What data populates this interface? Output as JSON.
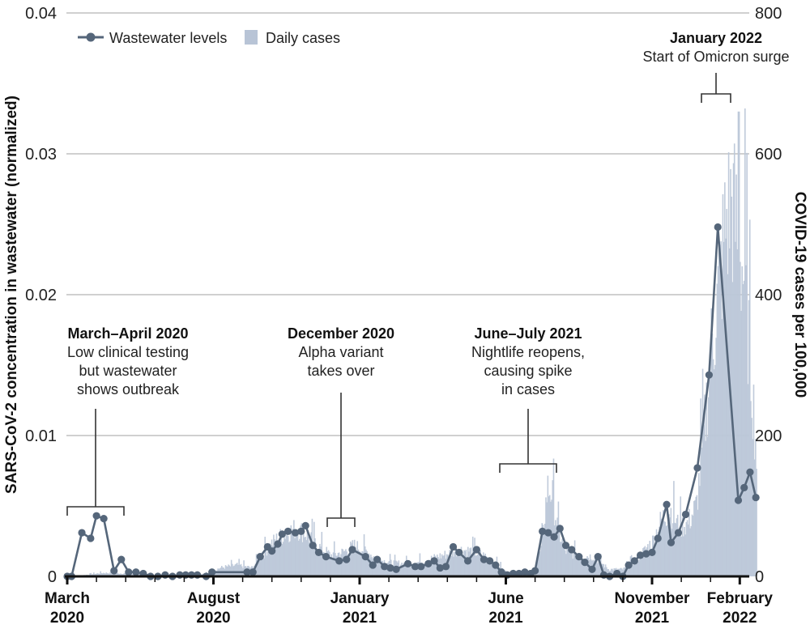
{
  "chart_data": {
    "type": "line+bar",
    "title": "",
    "legend": {
      "placement": "top-left",
      "items": [
        {
          "name": "Wastewater levels",
          "type": "line-marker",
          "color": "#55667a"
        },
        {
          "name": "Daily cases",
          "type": "bar",
          "color": "#b8c4d6"
        }
      ]
    },
    "x_axis": {
      "unit": "months since March 2020",
      "range": [
        0,
        23.3
      ],
      "major_ticks": [
        {
          "month": 0,
          "label_line1": "March",
          "label_line2": "2020"
        },
        {
          "month": 5,
          "label_line1": "August",
          "label_line2": "2020"
        },
        {
          "month": 10,
          "label_line1": "January",
          "label_line2": "2021"
        },
        {
          "month": 15,
          "label_line1": "June",
          "label_line2": "2021"
        },
        {
          "month": 20,
          "label_line1": "November",
          "label_line2": "2021"
        },
        {
          "month": 23,
          "label_line1": "February",
          "label_line2": "2022"
        }
      ],
      "minor_tick_every_months": 1
    },
    "y_left": {
      "label": "SARS-CoV-2 concentration in wastewater (normalized)",
      "range": [
        0,
        0.04
      ],
      "ticks": [
        {
          "value": 0,
          "label": "0"
        },
        {
          "value": 0.01,
          "label": "0.01"
        },
        {
          "value": 0.02,
          "label": "0.02"
        },
        {
          "value": 0.03,
          "label": "0.03"
        },
        {
          "value": 0.04,
          "label": "0.04"
        }
      ],
      "grid": true
    },
    "y_right": {
      "label": "COVID-19 cases per 100,000",
      "range": [
        0,
        800
      ],
      "ticks": [
        {
          "value": 0,
          "label": "0"
        },
        {
          "value": 200,
          "label": "200"
        },
        {
          "value": 400,
          "label": "400"
        },
        {
          "value": 600,
          "label": "600"
        },
        {
          "value": 800,
          "label": "800"
        }
      ]
    },
    "wastewater": {
      "name": "Wastewater levels",
      "points": [
        [
          0.0,
          0.0
        ],
        [
          0.15,
          0.0
        ],
        [
          0.5,
          0.0031
        ],
        [
          0.8,
          0.0027
        ],
        [
          1.0,
          0.0043
        ],
        [
          1.25,
          0.0041
        ],
        [
          1.6,
          0.0004
        ],
        [
          1.85,
          0.0012
        ],
        [
          2.1,
          0.0003
        ],
        [
          2.35,
          0.0003
        ],
        [
          2.6,
          0.0002
        ],
        [
          2.85,
          0.0
        ],
        [
          3.1,
          0.0
        ],
        [
          3.35,
          0.0001
        ],
        [
          3.6,
          0.0
        ],
        [
          3.85,
          0.0001
        ],
        [
          4.05,
          0.0001
        ],
        [
          4.25,
          0.0001
        ],
        [
          4.45,
          0.0001
        ],
        [
          4.75,
          0.0
        ],
        [
          4.95,
          0.0003
        ],
        [
          6.15,
          0.0003
        ],
        [
          6.35,
          0.0003
        ],
        [
          6.6,
          0.0014
        ],
        [
          6.85,
          0.0021
        ],
        [
          7.0,
          0.0018
        ],
        [
          7.2,
          0.0023
        ],
        [
          7.35,
          0.003
        ],
        [
          7.55,
          0.0032
        ],
        [
          7.8,
          0.0031
        ],
        [
          8.0,
          0.0032
        ],
        [
          8.15,
          0.0036
        ],
        [
          8.4,
          0.0022
        ],
        [
          8.6,
          0.0017
        ],
        [
          8.85,
          0.0014
        ],
        [
          9.3,
          0.0011
        ],
        [
          9.55,
          0.0012
        ],
        [
          9.75,
          0.0019
        ],
        [
          10.2,
          0.0014
        ],
        [
          10.45,
          0.0008
        ],
        [
          10.6,
          0.0012
        ],
        [
          10.85,
          0.0007
        ],
        [
          11.05,
          0.0006
        ],
        [
          11.25,
          0.0005
        ],
        [
          11.65,
          0.0009
        ],
        [
          11.9,
          0.0007
        ],
        [
          12.1,
          0.0007
        ],
        [
          12.35,
          0.0009
        ],
        [
          12.55,
          0.0011
        ],
        [
          12.75,
          0.0006
        ],
        [
          12.95,
          0.0007
        ],
        [
          13.2,
          0.0021
        ],
        [
          13.4,
          0.0017
        ],
        [
          13.7,
          0.0011
        ],
        [
          14.0,
          0.0019
        ],
        [
          14.25,
          0.0012
        ],
        [
          14.45,
          0.0011
        ],
        [
          14.65,
          0.0008
        ],
        [
          14.85,
          0.0003
        ],
        [
          15.05,
          0.0001
        ],
        [
          15.25,
          0.0002
        ],
        [
          15.45,
          0.0002
        ],
        [
          15.65,
          0.0003
        ],
        [
          15.85,
          0.0002
        ],
        [
          16.0,
          0.0004
        ],
        [
          16.25,
          0.0032
        ],
        [
          16.45,
          0.0031
        ],
        [
          16.65,
          0.0028
        ],
        [
          16.85,
          0.0034
        ],
        [
          17.05,
          0.0022
        ],
        [
          17.25,
          0.0019
        ],
        [
          17.5,
          0.0014
        ],
        [
          17.7,
          0.001
        ],
        [
          17.95,
          0.0005
        ],
        [
          18.15,
          0.0014
        ],
        [
          18.35,
          0.0001
        ],
        [
          18.55,
          0.0
        ],
        [
          18.8,
          0.0002
        ],
        [
          19.0,
          0.0
        ],
        [
          19.2,
          0.0008
        ],
        [
          19.4,
          0.0011
        ],
        [
          19.6,
          0.0015
        ],
        [
          19.8,
          0.0016
        ],
        [
          20.0,
          0.0017
        ],
        [
          20.2,
          0.0027
        ],
        [
          20.5,
          0.0051
        ],
        [
          20.65,
          0.0024
        ],
        [
          20.9,
          0.0031
        ],
        [
          21.15,
          0.0044
        ],
        [
          21.55,
          0.0077
        ],
        [
          21.95,
          0.0143
        ],
        [
          22.25,
          0.0248
        ],
        [
          22.95,
          0.0054
        ],
        [
          23.15,
          0.0063
        ],
        [
          23.35,
          0.0074
        ],
        [
          23.55,
          0.0056
        ]
      ]
    },
    "daily_cases_envelope": {
      "name": "Daily cases",
      "description": "daily bars, cases per 100,000, approximate smoothed envelope",
      "points": [
        [
          0.0,
          0
        ],
        [
          0.6,
          2
        ],
        [
          1.2,
          5
        ],
        [
          2.0,
          4
        ],
        [
          3.0,
          1
        ],
        [
          4.0,
          1
        ],
        [
          4.8,
          4
        ],
        [
          5.2,
          12
        ],
        [
          5.8,
          16
        ],
        [
          6.3,
          12
        ],
        [
          6.6,
          28
        ],
        [
          7.0,
          48
        ],
        [
          7.4,
          60
        ],
        [
          7.8,
          68
        ],
        [
          8.1,
          62
        ],
        [
          8.5,
          45
        ],
        [
          9.0,
          30
        ],
        [
          9.4,
          34
        ],
        [
          9.8,
          44
        ],
        [
          10.2,
          36
        ],
        [
          10.6,
          24
        ],
        [
          11.0,
          20
        ],
        [
          11.5,
          18
        ],
        [
          12.0,
          20
        ],
        [
          12.5,
          26
        ],
        [
          13.0,
          32
        ],
        [
          13.4,
          38
        ],
        [
          13.8,
          36
        ],
        [
          14.2,
          30
        ],
        [
          14.6,
          20
        ],
        [
          15.0,
          6
        ],
        [
          15.4,
          3
        ],
        [
          15.9,
          3
        ],
        [
          16.2,
          40
        ],
        [
          16.4,
          125
        ],
        [
          16.55,
          120
        ],
        [
          16.75,
          70
        ],
        [
          17.0,
          36
        ],
        [
          17.5,
          30
        ],
        [
          18.0,
          28
        ],
        [
          18.5,
          10
        ],
        [
          19.0,
          10
        ],
        [
          19.5,
          26
        ],
        [
          20.0,
          50
        ],
        [
          20.3,
          80
        ],
        [
          20.6,
          95
        ],
        [
          20.9,
          70
        ],
        [
          21.2,
          75
        ],
        [
          21.5,
          100
        ],
        [
          21.75,
          200
        ],
        [
          22.0,
          320
        ],
        [
          22.3,
          420
        ],
        [
          22.5,
          500
        ],
        [
          22.7,
          530
        ],
        [
          22.95,
          470
        ],
        [
          23.15,
          420
        ],
        [
          23.35,
          300
        ],
        [
          23.55,
          180
        ],
        [
          23.6,
          0
        ]
      ],
      "max_single_day": 660
    },
    "annotations": [
      {
        "title": "March–April 2020",
        "lines": [
          "Low clinical testing",
          "but wastewater",
          "shows outbreak"
        ],
        "span_months": [
          0,
          2
        ]
      },
      {
        "title": "December 2020",
        "lines": [
          "Alpha variant",
          "takes over"
        ],
        "span_months": [
          9,
          10
        ]
      },
      {
        "title": "June–July 2021",
        "lines": [
          "Nightlife reopens,",
          "causing spike",
          "in cases"
        ],
        "span_months": [
          15,
          17
        ]
      },
      {
        "title": "January 2022",
        "lines": [
          "Start of Omicron surge"
        ],
        "span_months": [
          22,
          23
        ]
      }
    ]
  }
}
